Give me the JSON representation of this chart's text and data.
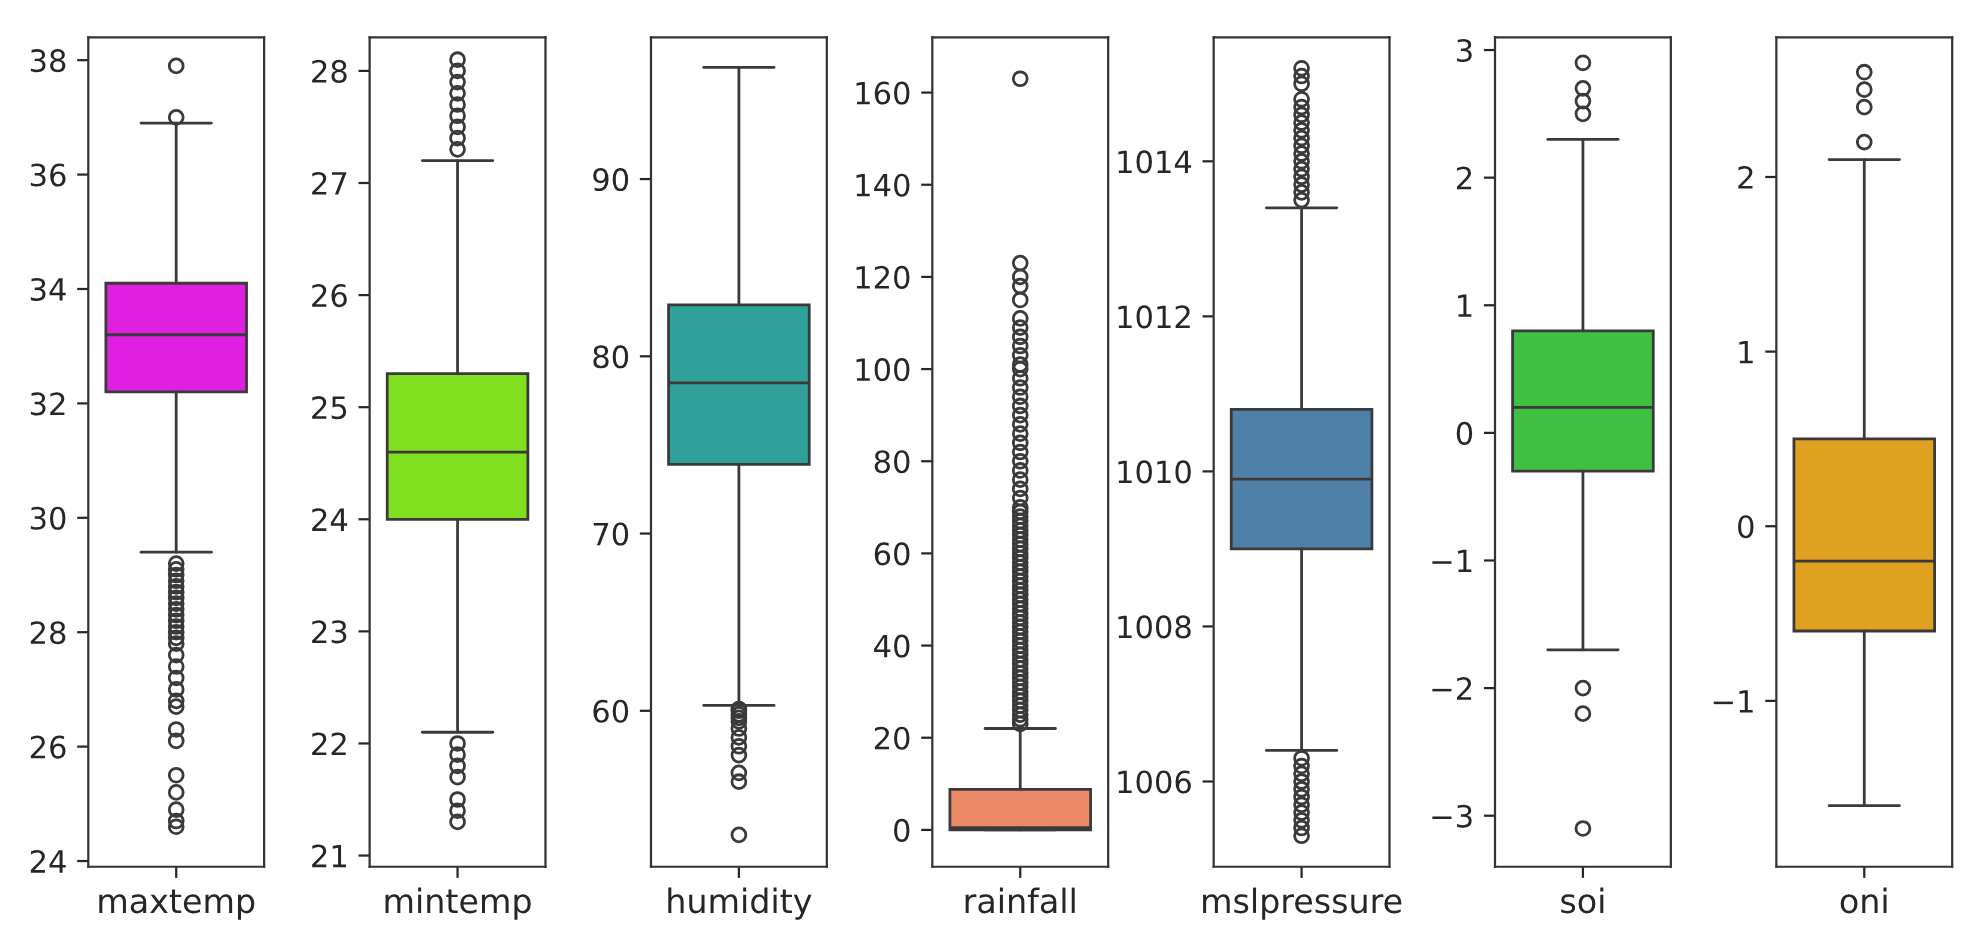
{
  "chart_data": [
    {
      "type": "box",
      "categories": [
        "maxtemp"
      ],
      "colors": [
        "#e020e0"
      ],
      "ylim": [
        23.9,
        38.4
      ],
      "yticks": [
        24,
        26,
        28,
        30,
        32,
        34,
        36,
        38
      ],
      "boxes": [
        {
          "low": 29.4,
          "q1": 32.2,
          "median": 33.2,
          "q3": 34.1,
          "high": 36.9,
          "outliers": [
            37.0,
            37.9,
            29.2,
            29.1,
            29.0,
            28.9,
            28.8,
            28.7,
            28.6,
            28.5,
            28.4,
            28.3,
            28.2,
            28.1,
            28.0,
            27.9,
            27.8,
            27.6,
            27.4,
            27.2,
            27.0,
            26.8,
            26.7,
            26.3,
            26.1,
            25.5,
            25.2,
            24.9,
            24.7,
            24.6
          ]
        }
      ]
    },
    {
      "type": "box",
      "categories": [
        "mintemp"
      ],
      "colors": [
        "#80e020"
      ],
      "ylim": [
        20.9,
        28.3
      ],
      "yticks": [
        21,
        22,
        23,
        24,
        25,
        26,
        27,
        28
      ],
      "boxes": [
        {
          "low": 22.1,
          "q1": 24.0,
          "median": 24.6,
          "q3": 25.3,
          "high": 27.2,
          "outliers": [
            27.3,
            27.4,
            27.5,
            27.6,
            27.7,
            27.8,
            27.9,
            28.0,
            28.1,
            22.0,
            21.9,
            21.8,
            21.7,
            21.5,
            21.4,
            21.3
          ]
        }
      ]
    },
    {
      "type": "box",
      "categories": [
        "humidity"
      ],
      "colors": [
        "#30a09a"
      ],
      "ylim": [
        51.2,
        98.0
      ],
      "yticks": [
        60,
        70,
        80,
        90
      ],
      "boxes": [
        {
          "low": 60.3,
          "q1": 73.9,
          "median": 78.5,
          "q3": 82.9,
          "high": 96.3,
          "outliers": [
            60.1,
            60.0,
            59.8,
            59.6,
            59.4,
            59.0,
            58.5,
            58.0,
            57.5,
            56.5,
            56.0,
            53.0
          ]
        }
      ]
    },
    {
      "type": "box",
      "categories": [
        "rainfall"
      ],
      "colors": [
        "#ec8a68"
      ],
      "ylim": [
        -8,
        172
      ],
      "yticks": [
        0,
        20,
        40,
        60,
        80,
        100,
        120,
        140,
        160
      ],
      "boxes": [
        {
          "low": 0,
          "q1": 0,
          "median": 0.5,
          "q3": 8.8,
          "high": 22,
          "outliers": [
            23,
            24,
            25,
            26,
            27,
            28,
            29,
            30,
            31,
            32,
            33,
            34,
            35,
            36,
            37,
            38,
            39,
            40,
            41,
            42,
            43,
            44,
            45,
            46,
            47,
            48,
            49,
            50,
            51,
            52,
            53,
            54,
            55,
            56,
            57,
            58,
            59,
            60,
            61,
            62,
            63,
            64,
            65,
            66,
            67,
            68,
            69,
            70,
            72,
            74,
            76,
            78,
            80,
            82,
            84,
            86,
            88,
            90,
            92,
            94,
            96,
            98,
            100,
            101,
            103,
            105,
            107,
            109,
            111,
            115,
            118,
            120,
            123,
            163
          ]
        }
      ]
    },
    {
      "type": "box",
      "categories": [
        "mslpressure"
      ],
      "colors": [
        "#4f80a8"
      ],
      "ylim": [
        1004.9,
        1015.6
      ],
      "yticks": [
        1006,
        1008,
        1010,
        1012,
        1014
      ],
      "boxes": [
        {
          "low": 1006.4,
          "q1": 1009.0,
          "median": 1009.9,
          "q3": 1010.8,
          "high": 1013.4,
          "outliers": [
            1013.5,
            1013.6,
            1013.7,
            1013.8,
            1013.9,
            1014.0,
            1014.1,
            1014.2,
            1014.3,
            1014.4,
            1014.5,
            1014.6,
            1014.7,
            1014.8,
            1015.0,
            1015.1,
            1015.2,
            1006.3,
            1006.2,
            1006.1,
            1006.0,
            1005.9,
            1005.8,
            1005.7,
            1005.6,
            1005.5,
            1005.4,
            1005.3
          ]
        }
      ]
    },
    {
      "type": "box",
      "categories": [
        "soi"
      ],
      "colors": [
        "#40c040"
      ],
      "ylim": [
        -3.4,
        3.1
      ],
      "yticks": [
        {
          "value": -3,
          "label": "−3"
        },
        {
          "value": -2,
          "label": "−2"
        },
        {
          "value": -1,
          "label": "−1"
        },
        0,
        1,
        2,
        3
      ],
      "boxes": [
        {
          "low": -1.7,
          "q1": -0.3,
          "median": 0.2,
          "q3": 0.8,
          "high": 2.3,
          "outliers": [
            2.5,
            2.6,
            2.7,
            2.9,
            -2.0,
            -2.2,
            -3.1
          ]
        }
      ]
    },
    {
      "type": "box",
      "categories": [
        "oni"
      ],
      "colors": [
        "#e0a020"
      ],
      "ylim": [
        -1.95,
        2.8
      ],
      "yticks": [
        {
          "value": -1,
          "label": "−1"
        },
        0,
        1,
        2
      ],
      "boxes": [
        {
          "low": -1.6,
          "q1": -0.6,
          "median": -0.2,
          "q3": 0.5,
          "high": 2.1,
          "outliers": [
            2.2,
            2.4,
            2.5,
            2.6
          ]
        }
      ]
    }
  ]
}
